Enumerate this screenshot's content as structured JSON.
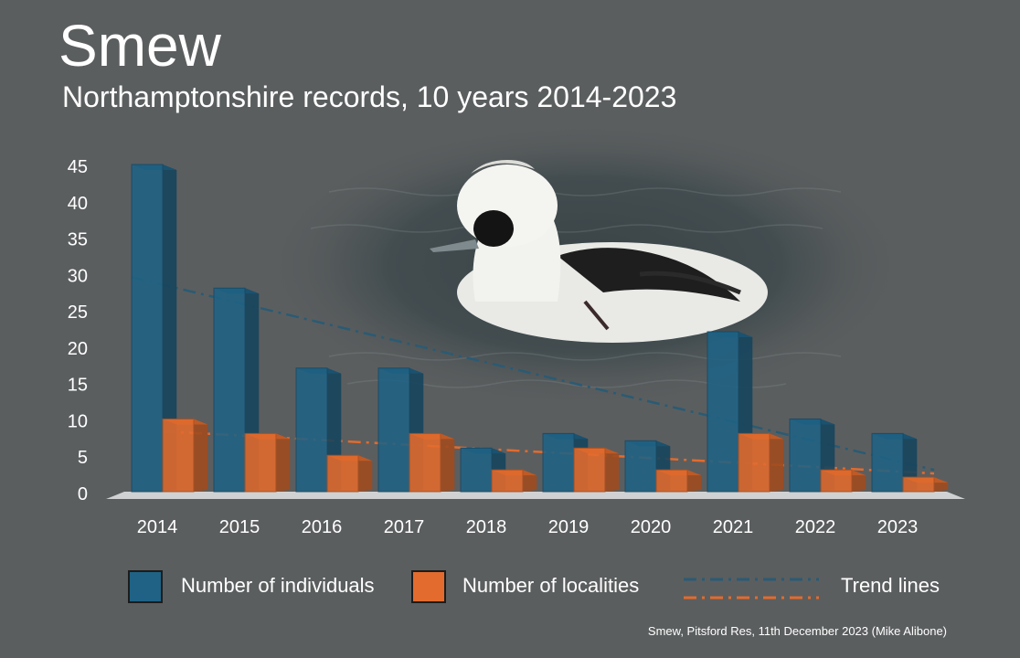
{
  "title": "Smew",
  "subtitle": "Northamptonshire records, 10 years 2014-2023",
  "caption": "Smew, Pitsford Res, 11th December 2023 (Mike Alibone)",
  "colors": {
    "background": "#5b5e5f",
    "individuals": "#1f6285",
    "localities": "#e36b2d",
    "text": "#ffffff"
  },
  "chart_data": {
    "type": "bar",
    "style": "3d-clustered",
    "categories": [
      "2014",
      "2015",
      "2016",
      "2017",
      "2018",
      "2019",
      "2020",
      "2021",
      "2022",
      "2023"
    ],
    "series": [
      {
        "name": "Number of individuals",
        "values": [
          45,
          28,
          17,
          17,
          6,
          8,
          7,
          22,
          10,
          8
        ]
      },
      {
        "name": "Number of localities",
        "values": [
          10,
          8,
          5,
          8,
          3,
          6,
          3,
          8,
          3,
          2
        ]
      }
    ],
    "trend_lines": {
      "label": "Trend lines",
      "individuals": {
        "start": 29.5,
        "end": 3.0
      },
      "localities": {
        "start": 8.3,
        "end": 2.5
      }
    },
    "ylim": [
      0,
      45
    ],
    "y_ticks": [
      "0",
      "5",
      "10",
      "15",
      "20",
      "25",
      "30",
      "35",
      "40",
      "45"
    ],
    "grid": false,
    "legend_position": "bottom",
    "legend": [
      {
        "label": "Number of individuals",
        "icon": "blue-square"
      },
      {
        "label": "Number of localities",
        "icon": "orange-square"
      },
      {
        "label": "Trend lines",
        "icon": "dash-dot-lines"
      }
    ]
  }
}
